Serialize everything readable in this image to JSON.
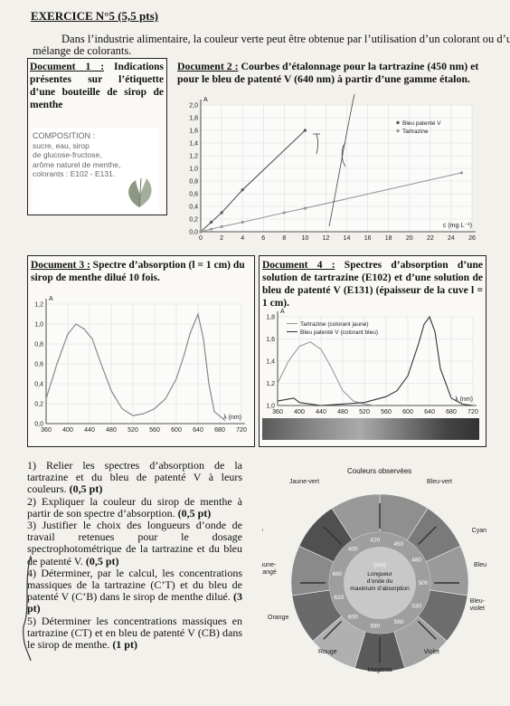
{
  "header": {
    "title": "EXERCICE N°5 (5,5 pts)",
    "intro_line1": "Dans l’industrie alimentaire, la couleur verte peut être obtenue par l’utilisation d’un colorant ou d’un",
    "intro_line2": "mélange de colorants."
  },
  "doc1": {
    "label": "Document 1 :",
    "title_rest": "Indications présentes sur l’étiquette d’une bouteille de sirop de menthe",
    "composition_title": "COMPOSITION :",
    "lines": [
      "sucre, eau, sirop",
      "de glucose-fructose,",
      "arôme naturel de menthe,",
      "colorants : E102 - E131."
    ]
  },
  "doc2": {
    "label": "Document 2 :",
    "title": "Courbes d’étalonnage pour la tartrazine (450 nm) et pour le bleu de patenté V (640 nm) à partir d’une gamme étalon."
  },
  "doc3": {
    "label": "Document 3 :",
    "title": "Spectre d’absorption (l = 1 cm) du sirop de menthe dilué 10 fois."
  },
  "doc4": {
    "label": "Document 4 :",
    "title": "Spectres d’absorption d’une solution de tartrazine (E102) et d’une solution de bleu de patenté V (E131) (épaisseur de la cuve l = 1 cm)."
  },
  "questions": [
    {
      "text": "1) Relier les spectres d’absorption de la tartrazine et du bleu de patenté V à leurs couleurs. ",
      "pts": "(0,5 pt)"
    },
    {
      "text": "2) Expliquer la couleur du sirop de menthe à partir de son spectre d’absorption. ",
      "pts": "(0,5 pt)"
    },
    {
      "text": "3) Justifier le choix des longueurs d’onde de travail retenues pour le dosage spectrophotométrique de la tartrazine et du bleu de patenté V. ",
      "pts": "(0,5 pt)"
    },
    {
      "text": "4) Déterminer, par le calcul, les concentrations massiques de la tartrazine (C’T) et du bleu de patenté V (C’B) dans le sirop de menthe dilué. ",
      "pts": "(3 pt)"
    },
    {
      "text": "5) Déterminer les concentrations massiques en tartrazine (CT) et en bleu de patenté V (CB) dans le sirop de menthe. ",
      "pts": "(1 pt)"
    }
  ],
  "wheel": {
    "title": "Couleurs observées",
    "outer_labels": [
      "Jaune-vert",
      "Bleu-vert",
      "Jaune",
      "Cyan",
      "Jaune-orangé",
      "Bleu",
      "Orange",
      "Bleu-violet",
      "Rouge",
      "Violet",
      "Magenta"
    ],
    "center_title": "Longueur d’onde du maximum d’absorption",
    "unit": "(nm)",
    "wavelengths": [
      "400",
      "420",
      "450",
      "480",
      "500",
      "530",
      "560",
      "580",
      "600",
      "620",
      "660"
    ]
  },
  "chart_data": [
    {
      "type": "line",
      "title": "Document 2",
      "xlabel": "c (mg·L⁻¹)",
      "ylabel": "A",
      "xlim": [
        0,
        26
      ],
      "ylim": [
        0,
        2.0
      ],
      "xticks": [
        "0",
        "2",
        "4",
        "6",
        "8",
        "10",
        "12",
        "14",
        "16",
        "18",
        "20",
        "22",
        "24",
        "26"
      ],
      "yticks": [
        "0,0",
        "0,2",
        "0,4",
        "0,6",
        "0,8",
        "1,0",
        "1,2",
        "1,4",
        "1,6",
        "1,8",
        "2,0"
      ],
      "legend": "top-right",
      "series": [
        {
          "name": "Bleu patenté V",
          "color": "#555555",
          "x": [
            0,
            1,
            2,
            4,
            10
          ],
          "y": [
            0,
            0.15,
            0.3,
            0.66,
            1.6
          ]
        },
        {
          "name": "Tartrazine",
          "color": "#9a9a9a",
          "x": [
            0,
            1,
            2,
            4,
            8,
            10,
            25
          ],
          "y": [
            0,
            0.04,
            0.08,
            0.15,
            0.3,
            0.37,
            0.93
          ]
        }
      ]
    },
    {
      "type": "line",
      "title": "Document 3",
      "xlabel": "λ (nm)",
      "ylabel": "A",
      "xlim": [
        360,
        720
      ],
      "ylim": [
        0,
        1.2
      ],
      "xticks": [
        "360",
        "400",
        "440",
        "480",
        "520",
        "560",
        "600",
        "640",
        "680",
        "720"
      ],
      "yticks": [
        "0,0",
        "0,2",
        "0,4",
        "0,6",
        "0,8",
        "1,0",
        "1,2"
      ],
      "series": [
        {
          "name": "",
          "color": "#888888",
          "x": [
            360,
            380,
            400,
            415,
            430,
            445,
            460,
            480,
            500,
            520,
            540,
            560,
            580,
            600,
            615,
            625,
            640,
            650,
            660,
            670,
            690
          ],
          "y": [
            0.25,
            0.6,
            0.9,
            1.0,
            0.95,
            0.85,
            0.62,
            0.33,
            0.15,
            0.08,
            0.1,
            0.15,
            0.25,
            0.45,
            0.7,
            0.9,
            1.1,
            0.85,
            0.4,
            0.12,
            0.03
          ]
        }
      ]
    },
    {
      "type": "line",
      "title": "Document 4",
      "xlabel": "λ (nm)",
      "ylabel": "A",
      "xlim": [
        360,
        720
      ],
      "ylim": [
        1.0,
        1.6
      ],
      "xticks": [
        "360",
        "400",
        "440",
        "480",
        "520",
        "560",
        "600",
        "640",
        "680",
        "720"
      ],
      "yticks": [
        "1,0",
        "1,2",
        "1,4",
        "1,6",
        "1,8"
      ],
      "legend": "top-left",
      "series": [
        {
          "name": "Tartrazine (colorant jaune)",
          "color": "#999999",
          "x": [
            360,
            380,
            400,
            420,
            440,
            460,
            480,
            500,
            520,
            540
          ],
          "y": [
            1.15,
            1.3,
            1.4,
            1.43,
            1.38,
            1.25,
            1.1,
            1.03,
            1.01,
            1.0
          ]
        },
        {
          "name": "Bleu patenté V (colorant bleu)",
          "color": "#333333",
          "x": [
            360,
            390,
            400,
            420,
            440,
            480,
            520,
            560,
            580,
            600,
            620,
            630,
            640,
            650,
            660,
            680,
            700,
            720
          ],
          "y": [
            1.03,
            1.05,
            1.02,
            1.01,
            1.0,
            1.01,
            1.02,
            1.06,
            1.1,
            1.2,
            1.42,
            1.55,
            1.6,
            1.5,
            1.25,
            1.05,
            1.01,
            1.0
          ]
        }
      ]
    }
  ]
}
